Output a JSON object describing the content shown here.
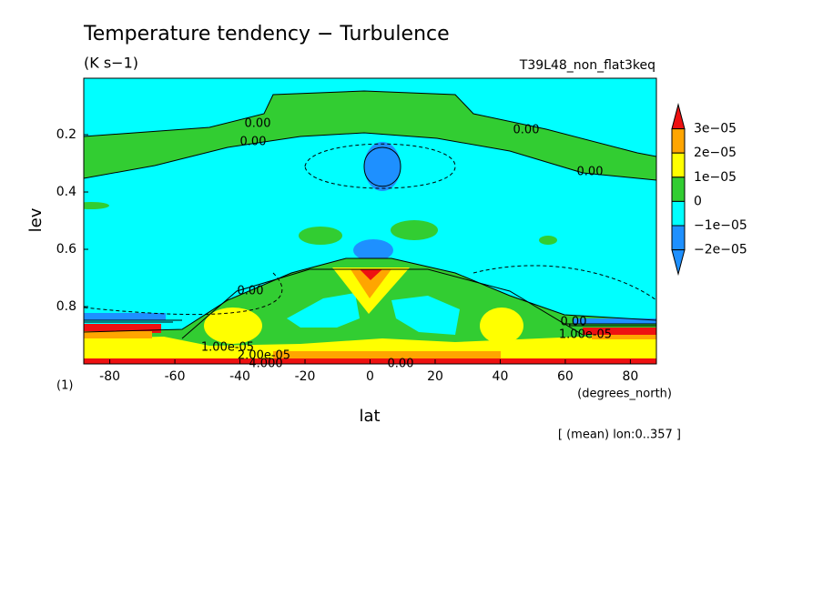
{
  "chart_data": {
    "type": "contour",
    "title": "Temperature tendency − Turbulence",
    "subtitle": "(K s−1)",
    "run_name": "T39L48_non_flat3keq",
    "xlabel": "lat",
    "ylabel": "lev",
    "x_unit": "(degrees_north)",
    "y_unit": "(1)",
    "note": "[ (mean) lon:0..357 ]",
    "xlim": [
      -88,
      88
    ],
    "xticks": [
      -80,
      -60,
      -40,
      -20,
      0,
      20,
      40,
      60,
      80
    ],
    "ylim": [
      0.003,
      1
    ],
    "y_inverted": true,
    "yticks": [
      0.2,
      0.4,
      0.6,
      0.8
    ],
    "levels": [
      {
        "value": -2e-05,
        "label": "−2e−05"
      },
      {
        "value": -1e-05,
        "label": "−1e−05"
      },
      0,
      {
        "value": 1e-05,
        "label": "1e−05"
      },
      {
        "value": 2e-05,
        "label": "2e−05"
      },
      {
        "value": 3e-05,
        "label": "3e−05"
      }
    ],
    "colors": [
      "#1e90ff",
      "#1e90ff",
      "#00ffff",
      "#32cd32",
      "#ffff00",
      "#ffa500",
      "#ee1111"
    ],
    "contour_labels": [
      "0.00",
      "0.00",
      "0.00",
      "0.00",
      "0.00",
      "0.00",
      "1.00e-05",
      "1.00e-05",
      "2.00e-05",
      "4.000",
      "0.00"
    ]
  }
}
